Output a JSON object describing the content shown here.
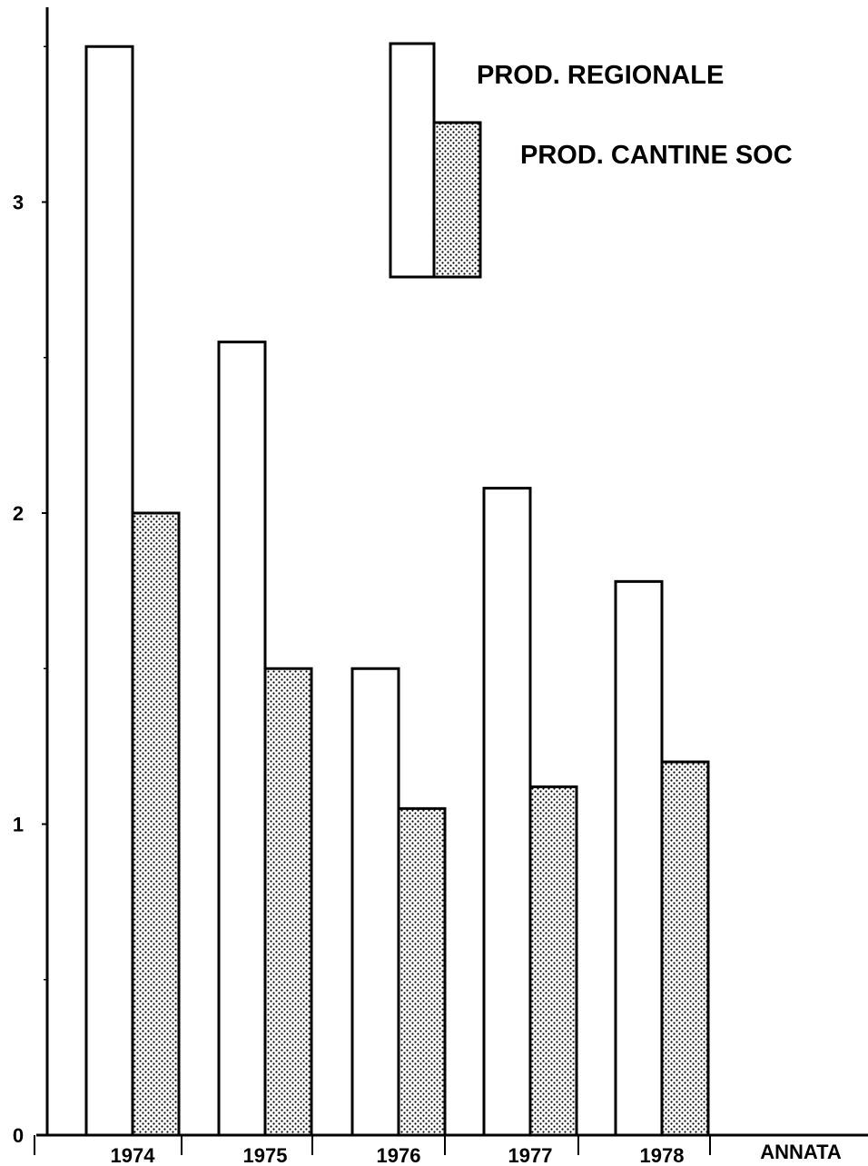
{
  "chart_data": {
    "type": "bar",
    "categories": [
      "1974",
      "1975",
      "1976",
      "1977",
      "1978"
    ],
    "series": [
      {
        "name": "PROD. REGIONALE",
        "values": [
          3.5,
          2.55,
          1.5,
          2.08,
          1.78
        ],
        "fill": "white"
      },
      {
        "name": "PROD. CANTINE SOC",
        "values": [
          2.0,
          1.5,
          1.05,
          1.12,
          1.2
        ],
        "fill": "dotted"
      }
    ],
    "title": "",
    "xlabel": "ANNATA",
    "ylabel": "",
    "ylim": [
      0,
      3.6
    ],
    "yticks": [
      0,
      1,
      2,
      3
    ],
    "ytick_labels": [
      "0",
      "1",
      "2",
      "3"
    ],
    "grid": false,
    "legend_position": "top-center"
  },
  "colors": {
    "ink": "#000000",
    "background": "#ffffff"
  }
}
